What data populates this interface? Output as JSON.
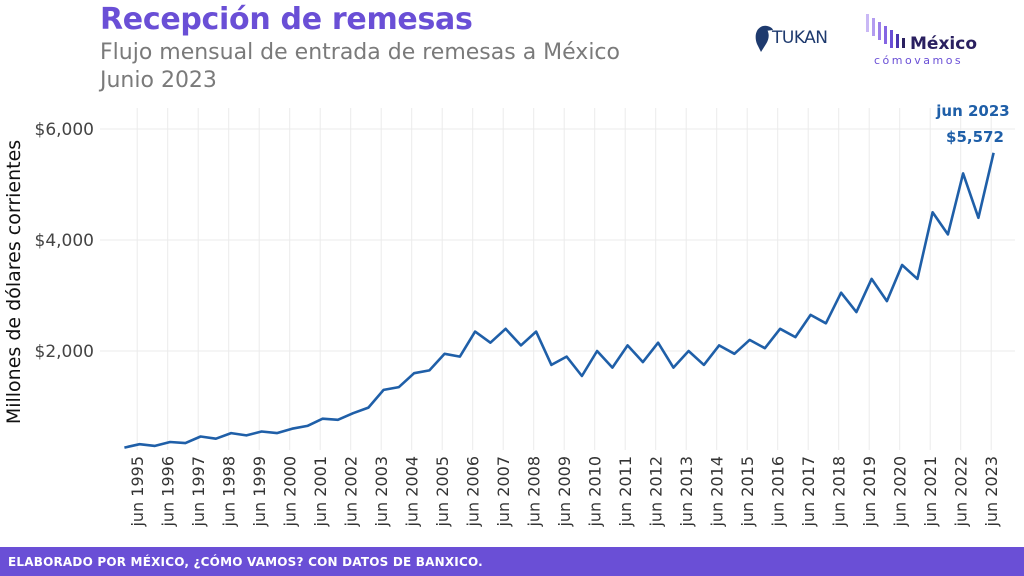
{
  "header": {
    "title": "Recepción de remesas",
    "subtitle": "Flujo mensual de entrada de remesas a México",
    "subtitle2": "Junio 2023"
  },
  "logos": {
    "tukan": "TUKAN",
    "mexico": "México",
    "mexico_sub": "cómovamos"
  },
  "footer": {
    "text": "ELABORADO POR MÉXICO, ¿CÓMO VAMOS? CON DATOS DE BANXICO."
  },
  "colors": {
    "accent": "#6a4fd6",
    "line": "#1f5fa8",
    "grid": "#ebebeb"
  },
  "chart_data": {
    "type": "line",
    "ylabel": "Millones de dólares corrientes",
    "ylim": [
      0,
      6500
    ],
    "y_ticks": [
      2000,
      4000,
      6000
    ],
    "y_tick_labels": [
      "$2,000",
      "$4,000",
      "$6,000"
    ],
    "x_ticks": [
      "jun 1995",
      "jun 1996",
      "jun 1997",
      "jun 1998",
      "jun 1999",
      "jun 2000",
      "jun 2001",
      "jun 2002",
      "jun 2003",
      "jun 2004",
      "jun 2005",
      "jun 2006",
      "jun 2007",
      "jun 2008",
      "jun 2009",
      "jun 2010",
      "jun 2011",
      "jun 2012",
      "jun 2013",
      "jun 2014",
      "jun 2015",
      "jun 2016",
      "jun 2017",
      "jun 2018",
      "jun 2019",
      "jun 2020",
      "jun 2021",
      "jun 2022",
      "jun 2023"
    ],
    "grid": true,
    "annotation": {
      "label": "jun 2023",
      "value": "$5,572"
    },
    "series": [
      {
        "values": [
          [
            1995.0,
            260
          ],
          [
            1995.5,
            320
          ],
          [
            1996.0,
            290
          ],
          [
            1996.5,
            360
          ],
          [
            1997.0,
            340
          ],
          [
            1997.5,
            460
          ],
          [
            1998.0,
            420
          ],
          [
            1998.5,
            520
          ],
          [
            1999.0,
            480
          ],
          [
            1999.5,
            550
          ],
          [
            2000.0,
            520
          ],
          [
            2000.5,
            600
          ],
          [
            2001.0,
            650
          ],
          [
            2001.5,
            780
          ],
          [
            2002.0,
            760
          ],
          [
            2002.5,
            880
          ],
          [
            2003.0,
            980
          ],
          [
            2003.5,
            1300
          ],
          [
            2004.0,
            1350
          ],
          [
            2004.5,
            1600
          ],
          [
            2005.0,
            1650
          ],
          [
            2005.5,
            1950
          ],
          [
            2006.0,
            1900
          ],
          [
            2006.5,
            2350
          ],
          [
            2007.0,
            2150
          ],
          [
            2007.5,
            2400
          ],
          [
            2008.0,
            2100
          ],
          [
            2008.5,
            2350
          ],
          [
            2009.0,
            1750
          ],
          [
            2009.5,
            1900
          ],
          [
            2010.0,
            1550
          ],
          [
            2010.5,
            2000
          ],
          [
            2011.0,
            1700
          ],
          [
            2011.5,
            2100
          ],
          [
            2012.0,
            1800
          ],
          [
            2012.5,
            2150
          ],
          [
            2013.0,
            1700
          ],
          [
            2013.5,
            2000
          ],
          [
            2014.0,
            1750
          ],
          [
            2014.5,
            2100
          ],
          [
            2015.0,
            1950
          ],
          [
            2015.5,
            2200
          ],
          [
            2016.0,
            2050
          ],
          [
            2016.5,
            2400
          ],
          [
            2017.0,
            2250
          ],
          [
            2017.5,
            2650
          ],
          [
            2018.0,
            2500
          ],
          [
            2018.5,
            3050
          ],
          [
            2019.0,
            2700
          ],
          [
            2019.5,
            3300
          ],
          [
            2020.0,
            2900
          ],
          [
            2020.5,
            3550
          ],
          [
            2021.0,
            3300
          ],
          [
            2021.5,
            4500
          ],
          [
            2022.0,
            4100
          ],
          [
            2022.5,
            5200
          ],
          [
            2023.0,
            4400
          ],
          [
            2023.5,
            5572
          ]
        ]
      }
    ]
  }
}
